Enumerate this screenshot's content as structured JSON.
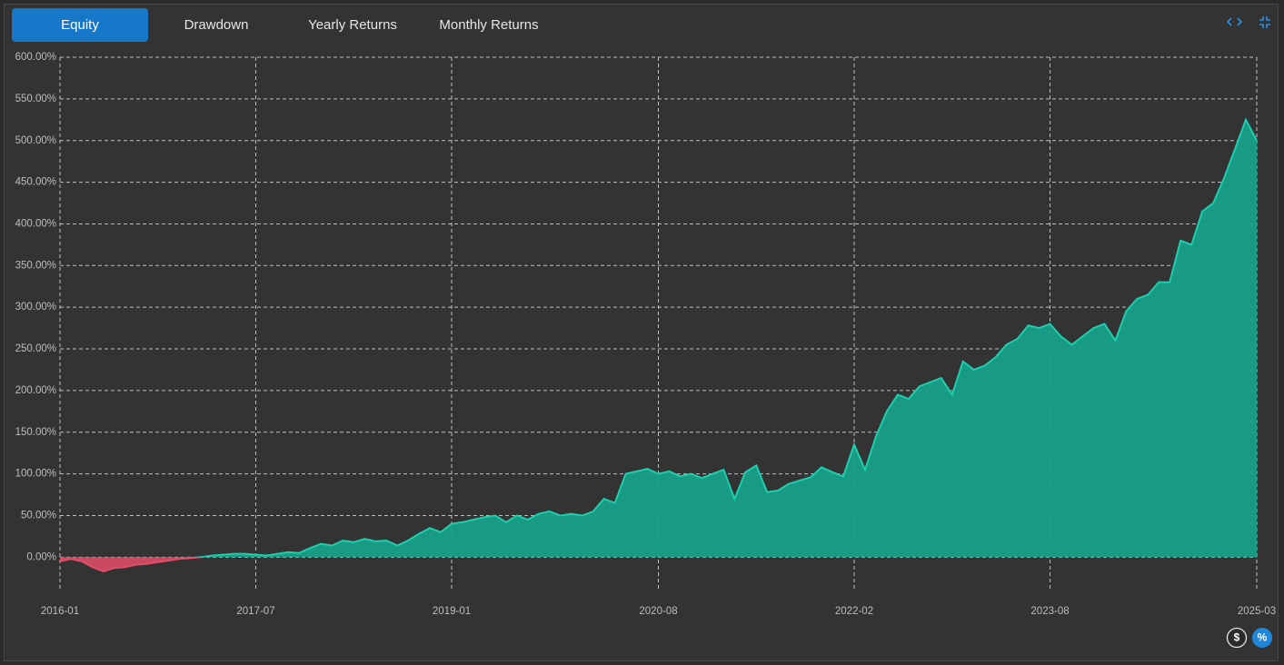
{
  "tabs": [
    "Equity",
    "Drawdown",
    "Yearly Returns",
    "Monthly Returns"
  ],
  "unit_buttons": [
    "$",
    "%"
  ],
  "chart_data": {
    "type": "area",
    "x": [
      "2016-01",
      "2016-02",
      "2016-03",
      "2016-04",
      "2016-05",
      "2016-06",
      "2016-07",
      "2016-08",
      "2016-09",
      "2016-10",
      "2016-11",
      "2016-12",
      "2017-01",
      "2017-02",
      "2017-03",
      "2017-04",
      "2017-05",
      "2017-06",
      "2017-07",
      "2017-08",
      "2017-09",
      "2017-10",
      "2017-11",
      "2017-12",
      "2018-01",
      "2018-02",
      "2018-03",
      "2018-04",
      "2018-05",
      "2018-06",
      "2018-07",
      "2018-08",
      "2018-09",
      "2018-10",
      "2018-11",
      "2018-12",
      "2019-01",
      "2019-02",
      "2019-03",
      "2019-04",
      "2019-05",
      "2019-06",
      "2019-07",
      "2019-08",
      "2019-09",
      "2019-10",
      "2019-11",
      "2019-12",
      "2020-01",
      "2020-02",
      "2020-03",
      "2020-04",
      "2020-05",
      "2020-06",
      "2020-07",
      "2020-08",
      "2020-09",
      "2020-10",
      "2020-11",
      "2020-12",
      "2021-01",
      "2021-02",
      "2021-03",
      "2021-04",
      "2021-05",
      "2021-06",
      "2021-07",
      "2021-08",
      "2021-09",
      "2021-10",
      "2021-11",
      "2021-12",
      "2022-01",
      "2022-02",
      "2022-03",
      "2022-04",
      "2022-05",
      "2022-06",
      "2022-07",
      "2022-08",
      "2022-09",
      "2022-10",
      "2022-11",
      "2022-12",
      "2023-01",
      "2023-02",
      "2023-03",
      "2023-04",
      "2023-05",
      "2023-06",
      "2023-07",
      "2023-08",
      "2023-09",
      "2023-10",
      "2023-11",
      "2023-12",
      "2024-01",
      "2024-02",
      "2024-03",
      "2024-04",
      "2024-05",
      "2024-06",
      "2024-07",
      "2024-08",
      "2024-09",
      "2024-10",
      "2024-11",
      "2024-12",
      "2025-01",
      "2025-02",
      "2025-03"
    ],
    "values": [
      -5,
      -2,
      -5,
      -12,
      -17,
      -13,
      -12,
      -9,
      -8,
      -6,
      -4,
      -2,
      -1,
      0,
      2,
      3,
      4,
      4,
      3,
      2,
      4,
      6,
      5,
      11,
      16,
      14,
      20,
      18,
      22,
      19,
      20,
      14,
      20,
      28,
      35,
      30,
      40,
      42,
      45,
      48,
      50,
      42,
      50,
      45,
      52,
      55,
      50,
      52,
      50,
      55,
      70,
      65,
      100,
      103,
      106,
      100,
      103,
      97,
      100,
      95,
      100,
      105,
      70,
      102,
      110,
      78,
      80,
      88,
      92,
      96,
      108,
      102,
      97,
      135,
      105,
      145,
      175,
      195,
      190,
      205,
      210,
      215,
      195,
      235,
      225,
      230,
      240,
      255,
      262,
      278,
      275,
      280,
      265,
      255,
      265,
      275,
      280,
      260,
      295,
      310,
      315,
      330,
      330,
      380,
      375,
      415,
      425,
      455,
      490,
      525,
      500
    ],
    "color": "#1ccfae",
    "fill": "#17a08a",
    "negative_color": "#e34d68",
    "xlim": [
      "2016-01",
      "2025-03"
    ],
    "xticks": [
      "2016-01",
      "2017-07",
      "2019-01",
      "2020-08",
      "2022-02",
      "2023-08",
      "2025-03"
    ],
    "ylim": [
      -40,
      600
    ],
    "yticks": [
      {
        "value": 0,
        "label": "0.00%"
      },
      {
        "value": 50,
        "label": "50.00%"
      },
      {
        "value": 100,
        "label": "100.00%"
      },
      {
        "value": 150,
        "label": "150.00%"
      },
      {
        "value": 200,
        "label": "200.00%"
      },
      {
        "value": 250,
        "label": "250.00%"
      },
      {
        "value": 300,
        "label": "300.00%"
      },
      {
        "value": 350,
        "label": "350.00%"
      },
      {
        "value": 400,
        "label": "400.00%"
      },
      {
        "value": 450,
        "label": "450.00%"
      },
      {
        "value": 500,
        "label": "500.00%"
      },
      {
        "value": 550,
        "label": "550.00%"
      },
      {
        "value": 600,
        "label": "600.00%"
      }
    ],
    "grid": true
  }
}
